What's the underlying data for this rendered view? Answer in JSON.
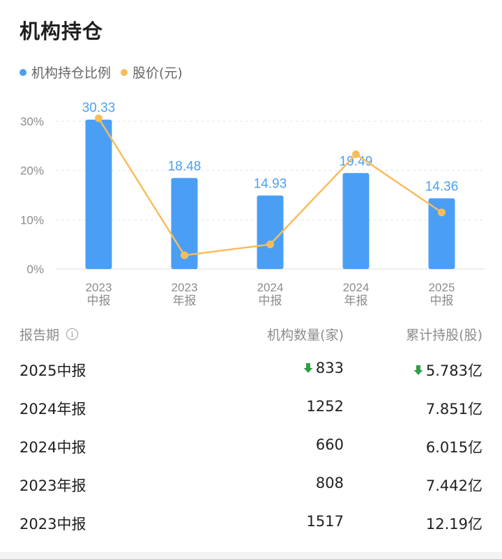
{
  "title": "机构持仓",
  "legend": [
    {
      "label": "机构持仓比例",
      "color": "#4a9ff5"
    },
    {
      "label": "股价(元)",
      "color": "#f7bd5b"
    }
  ],
  "chart_data": {
    "type": "bar",
    "categories": [
      [
        "2023",
        "中报"
      ],
      [
        "2023",
        "年报"
      ],
      [
        "2024",
        "中报"
      ],
      [
        "2024",
        "年报"
      ],
      [
        "2025",
        "中报"
      ]
    ],
    "series": [
      {
        "name": "机构持仓比例",
        "type": "bar",
        "values": [
          30.33,
          18.48,
          14.93,
          19.49,
          14.36
        ],
        "labels": [
          "30.33",
          "18.48",
          "14.93",
          "19.49",
          "14.36"
        ],
        "color": "#4a9ff5"
      },
      {
        "name": "股价(元)",
        "type": "line",
        "values": [
          30.6,
          2.8,
          5.0,
          23.3,
          11.5
        ],
        "color": "#f7bd5b"
      }
    ],
    "yticks": [
      "0%",
      "10%",
      "20%",
      "30%"
    ],
    "ylim": [
      0,
      30
    ],
    "grid": true
  },
  "table": {
    "headers": {
      "period": "报告期",
      "count": "机构数量(家)",
      "shares": "累计持股(股)"
    },
    "info_icon": "info-icon",
    "rows": [
      {
        "period": "2025中报",
        "count": "833",
        "shares": "5.783亿",
        "count_down": true,
        "shares_down": true
      },
      {
        "period": "2024年报",
        "count": "1252",
        "shares": "7.851亿",
        "count_down": false,
        "shares_down": false
      },
      {
        "period": "2024中报",
        "count": "660",
        "shares": "6.015亿",
        "count_down": false,
        "shares_down": false
      },
      {
        "period": "2023年报",
        "count": "808",
        "shares": "7.442亿",
        "count_down": false,
        "shares_down": false
      },
      {
        "period": "2023中报",
        "count": "1517",
        "shares": "12.19亿",
        "count_down": false,
        "shares_down": false
      }
    ]
  },
  "colors": {
    "arrow_down": "#2ea043"
  }
}
